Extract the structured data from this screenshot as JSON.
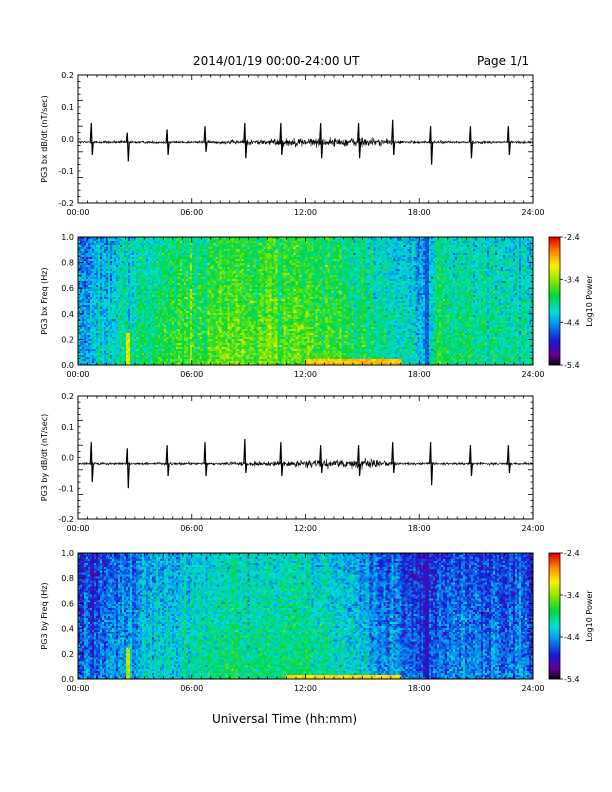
{
  "header": {
    "title": "2014/01/19  00:00-24:00 UT",
    "page_label": "Page 1/1"
  },
  "footer": {
    "xlabel": "Universal Time (hh:mm)"
  },
  "colors": {
    "trace": "#000000",
    "frame": "#000000",
    "background": "#ffffff"
  },
  "chart_data": [
    {
      "type": "line",
      "ylabel": "PG3 bx dB/dt (nT/sec)",
      "xlim": [
        0,
        24
      ],
      "ylim": [
        -0.2,
        0.2
      ],
      "yticks": [
        "0.2",
        "0.1",
        "0.0",
        "-0.1",
        "-0.2"
      ],
      "xticks": [
        "00:00",
        "06:00",
        "12:00",
        "18:00",
        "24:00"
      ],
      "baseline": -0.01,
      "noise_profile": {
        "hours": [
          0,
          7,
          9,
          11,
          12,
          14,
          15,
          16,
          17,
          18,
          24
        ],
        "amplitude": [
          0.004,
          0.004,
          0.008,
          0.012,
          0.014,
          0.012,
          0.018,
          0.01,
          0.005,
          0.004,
          0.004
        ]
      },
      "spikes": [
        {
          "hour": 0.7,
          "up": 0.05,
          "down": -0.05
        },
        {
          "hour": 2.6,
          "up": 0.02,
          "down": -0.07
        },
        {
          "hour": 4.7,
          "up": 0.03,
          "down": -0.05
        },
        {
          "hour": 6.7,
          "up": 0.04,
          "down": -0.04
        },
        {
          "hour": 8.8,
          "up": 0.05,
          "down": -0.06
        },
        {
          "hour": 10.7,
          "up": 0.05,
          "down": -0.05
        },
        {
          "hour": 12.8,
          "up": 0.05,
          "down": -0.06
        },
        {
          "hour": 14.8,
          "up": 0.05,
          "down": -0.06
        },
        {
          "hour": 16.6,
          "up": 0.06,
          "down": -0.05
        },
        {
          "hour": 18.6,
          "up": 0.04,
          "down": -0.08
        },
        {
          "hour": 20.7,
          "up": 0.04,
          "down": -0.06
        },
        {
          "hour": 22.7,
          "up": 0.04,
          "down": -0.05
        }
      ]
    },
    {
      "type": "heatmap",
      "ylabel": "PG3 bx Freq (Hz)",
      "xlim": [
        0,
        24
      ],
      "ylim": [
        0.0,
        1.0
      ],
      "yticks": [
        "1.0",
        "0.8",
        "0.6",
        "0.4",
        "0.2",
        "0.0"
      ],
      "xticks": [
        "00:00",
        "06:00",
        "12:00",
        "18:00",
        "24:00"
      ],
      "colorbar": {
        "label": "Log10 Power",
        "ticks": [
          "-2.4",
          "-3.4",
          "-4.4",
          "-5.4"
        ],
        "range": [
          -5.4,
          -2.4
        ]
      },
      "profile": {
        "hours": [
          0,
          1,
          4.5,
          8,
          12,
          15,
          18.4,
          19,
          24
        ],
        "mean": [
          -4.4,
          -4.3,
          -3.8,
          -3.6,
          -3.6,
          -3.9,
          -4.3,
          -3.9,
          -4.1
        ]
      },
      "features": [
        {
          "kind": "lowfreq_band",
          "from": 12.0,
          "to": 17.0,
          "freq_max": 0.04,
          "level": -2.9
        },
        {
          "kind": "vertical_line",
          "hour": 2.6,
          "freq_max": 0.25,
          "level": -3.2
        },
        {
          "kind": "gap",
          "hour": 18.4,
          "level": -4.6
        }
      ]
    },
    {
      "type": "line",
      "ylabel": "PG3 by dB/dt (nT/sec)",
      "xlim": [
        0,
        24
      ],
      "ylim": [
        -0.2,
        0.2
      ],
      "yticks": [
        "0.2",
        "0.1",
        "0.0",
        "-0.1",
        "-0.2"
      ],
      "xticks": [
        "00:00",
        "06:00",
        "12:00",
        "18:00",
        "24:00"
      ],
      "baseline": -0.02,
      "noise_profile": {
        "hours": [
          0,
          7,
          9,
          11,
          12,
          14,
          15,
          16,
          17,
          18,
          24
        ],
        "amplitude": [
          0.004,
          0.004,
          0.006,
          0.009,
          0.012,
          0.012,
          0.016,
          0.01,
          0.005,
          0.004,
          0.004
        ]
      },
      "spikes": [
        {
          "hour": 0.7,
          "up": 0.05,
          "down": -0.08
        },
        {
          "hour": 2.6,
          "up": 0.03,
          "down": -0.1
        },
        {
          "hour": 4.7,
          "up": 0.04,
          "down": -0.06
        },
        {
          "hour": 6.7,
          "up": 0.05,
          "down": -0.06
        },
        {
          "hour": 8.8,
          "up": 0.06,
          "down": -0.05
        },
        {
          "hour": 10.7,
          "up": 0.05,
          "down": -0.06
        },
        {
          "hour": 12.8,
          "up": 0.04,
          "down": -0.05
        },
        {
          "hour": 14.8,
          "up": 0.04,
          "down": -0.06
        },
        {
          "hour": 16.6,
          "up": 0.05,
          "down": -0.05
        },
        {
          "hour": 18.6,
          "up": 0.05,
          "down": -0.09
        },
        {
          "hour": 20.7,
          "up": 0.04,
          "down": -0.06
        },
        {
          "hour": 22.7,
          "up": 0.04,
          "down": -0.05
        }
      ]
    },
    {
      "type": "heatmap",
      "ylabel": "PG3 by Freq (Hz)",
      "xlim": [
        0,
        24
      ],
      "ylim": [
        0.0,
        1.0
      ],
      "yticks": [
        "1.0",
        "0.8",
        "0.6",
        "0.4",
        "0.2",
        "0.0"
      ],
      "xticks": [
        "00:00",
        "06:00",
        "12:00",
        "18:00",
        "24:00"
      ],
      "colorbar": {
        "label": "Log10 Power",
        "ticks": [
          "-2.4",
          "-3.4",
          "-4.4",
          "-5.4"
        ],
        "range": [
          -5.4,
          -2.4
        ]
      },
      "profile": {
        "hours": [
          0,
          1,
          4.5,
          8,
          12,
          14.5,
          16,
          18.4,
          19,
          24
        ],
        "mean": [
          -4.7,
          -4.6,
          -4.2,
          -4.0,
          -4.0,
          -4.2,
          -4.5,
          -4.7,
          -4.5,
          -4.6
        ]
      },
      "features": [
        {
          "kind": "lowfreq_band",
          "from": 11.0,
          "to": 17.0,
          "freq_max": 0.03,
          "level": -3.0
        },
        {
          "kind": "vertical_line",
          "hour": 2.6,
          "freq_max": 0.25,
          "level": -3.3
        },
        {
          "kind": "gap",
          "hour": 18.4,
          "level": -4.9
        }
      ]
    }
  ]
}
